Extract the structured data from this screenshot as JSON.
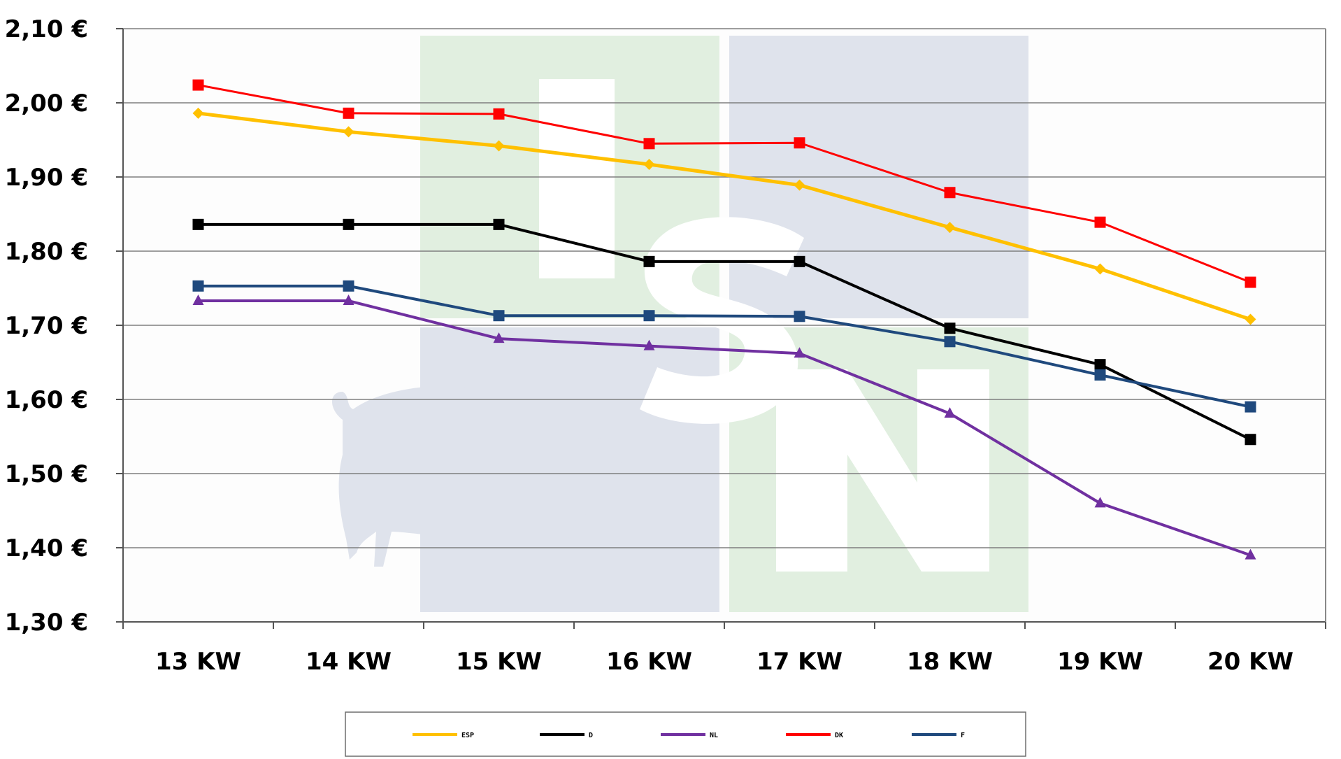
{
  "chart_data": {
    "type": "line",
    "title": "",
    "xlabel": "",
    "ylabel": "",
    "categories": [
      "13 KW",
      "14 KW",
      "15 KW",
      "16 KW",
      "17 KW",
      "18 KW",
      "19 KW",
      "20 KW"
    ],
    "ylim": [
      1.3,
      2.1
    ],
    "yticks": [
      1.3,
      1.4,
      1.5,
      1.6,
      1.7,
      1.8,
      1.9,
      2.0,
      2.1
    ],
    "ytick_labels": [
      "1,30 €",
      "1,40 €",
      "1,50 €",
      "1,60 €",
      "1,70 €",
      "1,80 €",
      "1,90 €",
      "2,00 €",
      "2,10 €"
    ],
    "grid": true,
    "legend_position": "bottom",
    "series": [
      {
        "name": "ESP",
        "color": "#FFC000",
        "marker": "diamond",
        "width": 5,
        "values": [
          1.986,
          1.961,
          1.942,
          1.917,
          1.889,
          1.832,
          1.776,
          1.708
        ]
      },
      {
        "name": "D",
        "color": "#000000",
        "marker": "square",
        "width": 4,
        "values": [
          1.836,
          1.836,
          1.836,
          1.786,
          1.786,
          1.696,
          1.647,
          1.546
        ]
      },
      {
        "name": "NL",
        "color": "#7030A0",
        "marker": "triangle",
        "width": 4,
        "values": [
          1.733,
          1.733,
          1.682,
          1.672,
          1.662,
          1.581,
          1.46,
          1.39
        ]
      },
      {
        "name": "DK",
        "color": "#FF0000",
        "marker": "square",
        "width": 3,
        "values": [
          2.024,
          1.986,
          1.985,
          1.945,
          1.946,
          1.879,
          1.839,
          1.758
        ]
      },
      {
        "name": "F",
        "color": "#1F497D",
        "marker": "square",
        "width": 4,
        "values": [
          1.753,
          1.753,
          1.713,
          1.713,
          1.712,
          1.678,
          1.633,
          1.59
        ]
      }
    ]
  },
  "watermark": {
    "green": "#E1EFE0",
    "blue": "#DFE3EC",
    "letters": [
      "I",
      "S",
      "N"
    ]
  }
}
